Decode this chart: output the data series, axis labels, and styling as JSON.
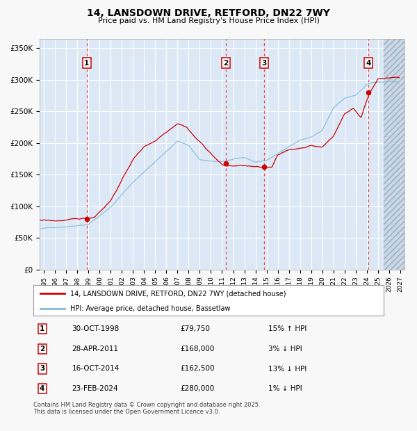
{
  "title": "14, LANSDOWN DRIVE, RETFORD, DN22 7WY",
  "subtitle": "Price paid vs. HM Land Registry's House Price Index (HPI)",
  "ylabel_ticks": [
    "£0",
    "£50K",
    "£100K",
    "£150K",
    "£200K",
    "£250K",
    "£300K",
    "£350K"
  ],
  "ytick_values": [
    0,
    50000,
    100000,
    150000,
    200000,
    250000,
    300000,
    350000
  ],
  "ylim": [
    0,
    365000
  ],
  "xlim_start": 1994.6,
  "xlim_end": 2027.4,
  "bg_color": "#f0f0f0",
  "plot_bg": "#dce8f5",
  "grid_color": "#ffffff",
  "red_line_color": "#cc0000",
  "blue_line_color": "#88bbdd",
  "sale_marker_color": "#cc0000",
  "sale_dates": [
    1998.83,
    2011.33,
    2014.79,
    2024.15
  ],
  "sale_prices": [
    79750,
    168000,
    162500,
    280000
  ],
  "sale_labels": [
    "1",
    "2",
    "3",
    "4"
  ],
  "vline_color": "#ee3333",
  "legend_items": [
    {
      "label": "14, LANSDOWN DRIVE, RETFORD, DN22 7WY (detached house)",
      "color": "#cc0000"
    },
    {
      "label": "HPI: Average price, detached house, Bassetlaw",
      "color": "#88bbdd"
    }
  ],
  "table_rows": [
    {
      "num": "1",
      "date": "30-OCT-1998",
      "price": "£79,750",
      "hpi": "15% ↑ HPI"
    },
    {
      "num": "2",
      "date": "28-APR-2011",
      "price": "£168,000",
      "hpi": "3% ↓ HPI"
    },
    {
      "num": "3",
      "date": "16-OCT-2014",
      "price": "£162,500",
      "hpi": "13% ↓ HPI"
    },
    {
      "num": "4",
      "date": "23-FEB-2024",
      "price": "£280,000",
      "hpi": "1% ↓ HPI"
    }
  ],
  "footnote": "Contains HM Land Registry data © Crown copyright and database right 2025.\nThis data is licensed under the Open Government Licence v3.0.",
  "hatch_start": 2025.5,
  "hpi_anchors_x": [
    1994.6,
    1995,
    1997,
    1999,
    2001,
    2003,
    2005,
    2007,
    2008,
    2009,
    2010,
    2011,
    2012,
    2013,
    2014,
    2015,
    2016,
    2017,
    2018,
    2019,
    2020,
    2021,
    2022,
    2023,
    2024,
    2024.5,
    2025,
    2025.5,
    2026,
    2027
  ],
  "hpi_anchors_y": [
    64000,
    65000,
    68000,
    73000,
    100000,
    140000,
    172000,
    205000,
    198000,
    175000,
    172000,
    172000,
    175000,
    177000,
    170000,
    173000,
    183000,
    195000,
    205000,
    210000,
    220000,
    255000,
    270000,
    275000,
    292000,
    296000,
    296000,
    296000,
    296000,
    296000
  ],
  "prop_anchors_x": [
    1994.6,
    1995,
    1996,
    1997,
    1998,
    1998.83,
    1999.5,
    2001,
    2003,
    2004,
    2005,
    2006,
    2007,
    2007.8,
    2008.5,
    2009.5,
    2010,
    2011,
    2011.33,
    2012,
    2013,
    2014,
    2014.79,
    2015.5,
    2016,
    2017,
    2018,
    2019,
    2020,
    2021,
    2022,
    2022.8,
    2023.5,
    2024.15,
    2025,
    2025.5,
    2026,
    2027
  ],
  "prop_anchors_y": [
    78000,
    78000,
    77000,
    78000,
    78500,
    79750,
    82000,
    110000,
    175000,
    195000,
    205000,
    220000,
    235000,
    230000,
    215000,
    197000,
    188000,
    170000,
    168000,
    168000,
    168000,
    165000,
    162500,
    165000,
    185000,
    192000,
    195000,
    200000,
    197000,
    215000,
    250000,
    260000,
    245000,
    280000,
    308000,
    308000,
    308000,
    308000
  ]
}
